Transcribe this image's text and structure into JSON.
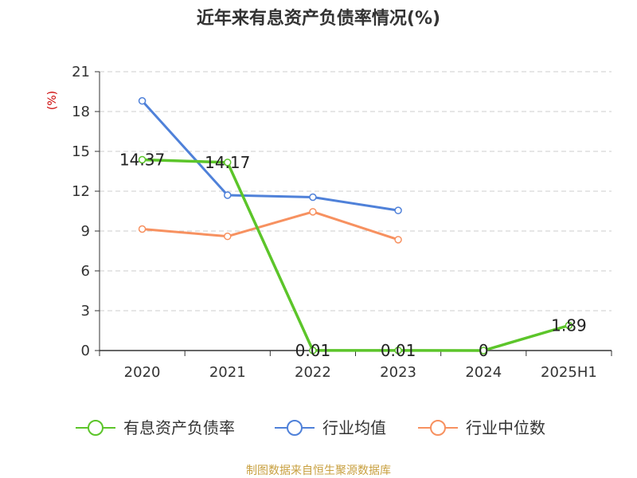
{
  "chart_data": {
    "type": "line",
    "title": "近年来有息资产负债率情况(%)",
    "ylabel": "(%)",
    "categories": [
      "2020",
      "2021",
      "2022",
      "2023",
      "2024",
      "2025H1"
    ],
    "ylim": [
      0,
      21
    ],
    "yticks": [
      0,
      3,
      6,
      9,
      12,
      15,
      18,
      21
    ],
    "grid": true,
    "legend_position": "bottom",
    "series": [
      {
        "name": "有息资产负债率",
        "color": "#5cc52a",
        "values": [
          14.37,
          14.17,
          0.01,
          0.01,
          0,
          1.89
        ],
        "labels": [
          "14.37",
          "14.17",
          "0.01",
          "0.01",
          "0",
          "1.89"
        ]
      },
      {
        "name": "行业均值",
        "color": "#4f81d9",
        "values": [
          18.8,
          11.7,
          11.55,
          10.55,
          null,
          null
        ]
      },
      {
        "name": "行业中位数",
        "color": "#f79160",
        "values": [
          9.15,
          8.6,
          10.45,
          8.35,
          null,
          null
        ]
      }
    ]
  },
  "source_text": "制图数据来自恒生聚源数据库"
}
